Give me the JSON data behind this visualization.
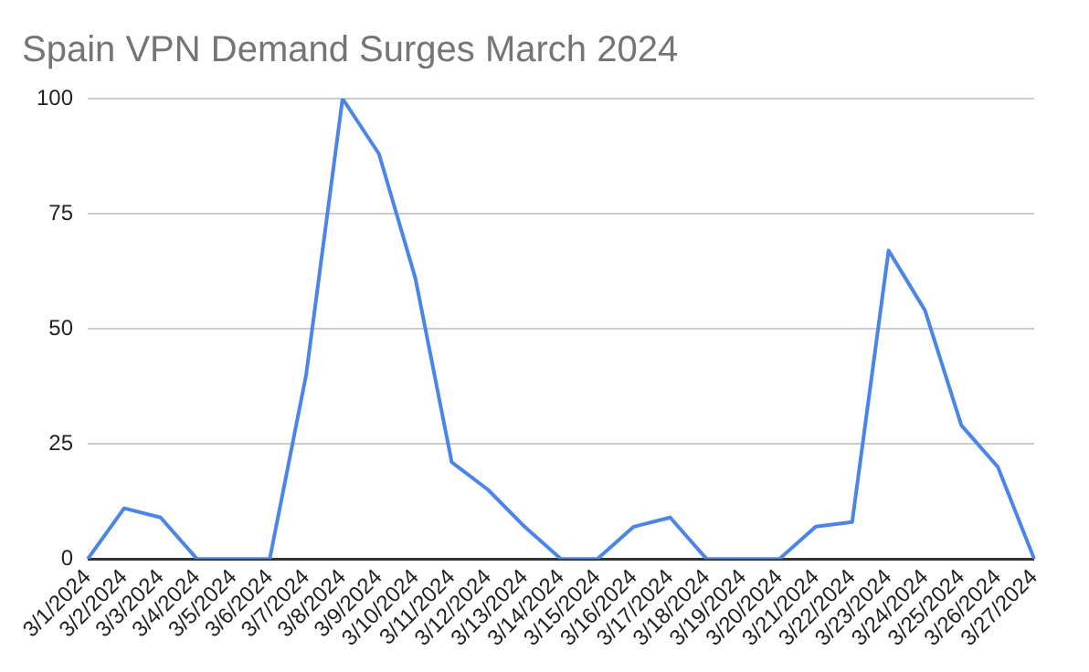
{
  "chart_data": {
    "type": "line",
    "title": "Spain VPN Demand Surges March 2024",
    "categories": [
      "3/1/2024",
      "3/2/2024",
      "3/3/2024",
      "3/4/2024",
      "3/5/2024",
      "3/6/2024",
      "3/7/2024",
      "3/8/2024",
      "3/9/2024",
      "3/10/2024",
      "3/11/2024",
      "3/12/2024",
      "3/13/2024",
      "3/14/2024",
      "3/15/2024",
      "3/16/2024",
      "3/17/2024",
      "3/18/2024",
      "3/19/2024",
      "3/20/2024",
      "3/21/2024",
      "3/22/2024",
      "3/23/2024",
      "3/24/2024",
      "3/25/2024",
      "3/26/2024",
      "3/27/2024"
    ],
    "series": [
      {
        "color": "#4a86e8",
        "values": [
          0,
          11,
          9,
          0,
          0,
          0,
          40,
          100,
          88,
          61,
          21,
          15,
          7,
          0,
          0,
          7,
          9,
          0,
          0,
          0,
          7,
          8,
          67,
          54,
          29,
          20,
          0
        ]
      }
    ],
    "ylim": [
      0,
      100
    ],
    "yticks": [
      0,
      25,
      50,
      75,
      100
    ],
    "grid": "y",
    "legend": false,
    "marker": "none",
    "line_style": "solid"
  }
}
